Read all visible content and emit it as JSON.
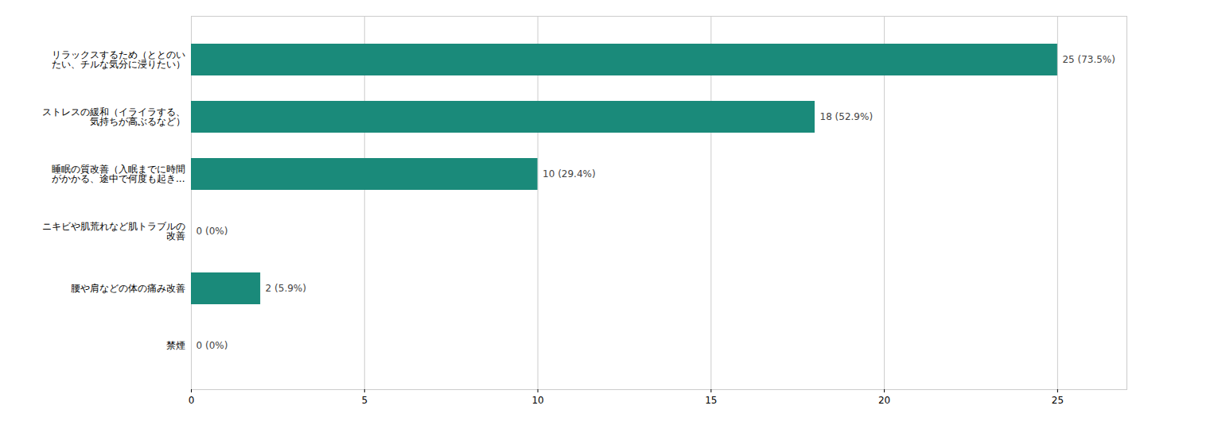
{
  "chart_data": {
    "type": "bar",
    "orientation": "horizontal",
    "categories": [
      "禁煙",
      "腰や肩などの体の痛み改善",
      "ニキビや肌荒れなど肌トラブルの\n改善",
      "睡眠の質改善（入眠までに時間\nがかかる、途中で何度も起き...",
      "ストレスの緩和（イライラする、\n気持ちが高ぶるなど）",
      "リラックスするため（ととのい\nたい、チルな気分に浸りたい）"
    ],
    "values": [
      0,
      2,
      0,
      10,
      18,
      25
    ],
    "value_labels": [
      "0 (0%)",
      "2 (5.9%)",
      "0 (0%)",
      "10 (29.4%)",
      "18 (52.9%)",
      "25 (73.5%)"
    ],
    "data_labels": true,
    "color": "#1a8a7a",
    "xlim": [
      0,
      27
    ],
    "xticks": [
      0,
      5,
      10,
      15,
      20,
      25
    ],
    "grid": true
  }
}
